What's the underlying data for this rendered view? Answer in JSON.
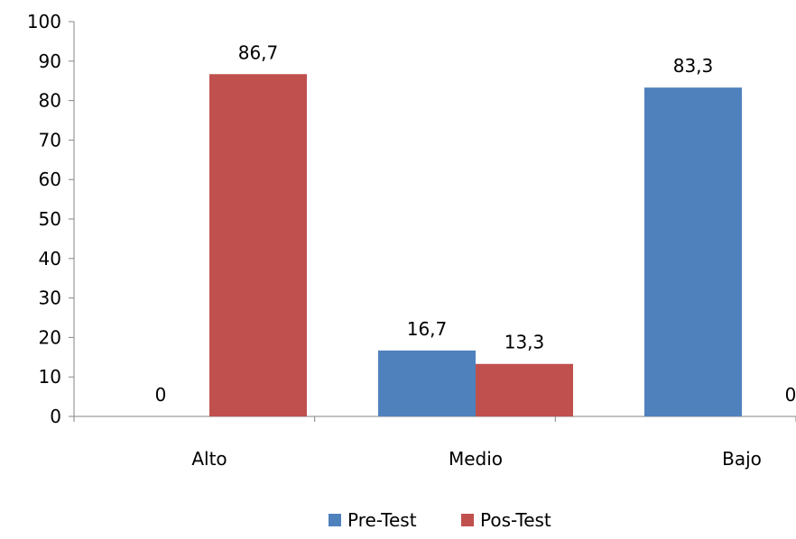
{
  "chart_data": {
    "type": "bar",
    "categories": [
      "Alto",
      "Medio",
      "Bajo"
    ],
    "series": [
      {
        "name": "Pre-Test",
        "color": "#4f81bd",
        "values": [
          0,
          16.7,
          83.3
        ],
        "labels": [
          "0",
          "16,7",
          "83,3"
        ]
      },
      {
        "name": "Pos-Test",
        "color": "#c0504d",
        "values": [
          86.7,
          13.3,
          0
        ],
        "labels": [
          "86,7",
          "13,3",
          "0"
        ]
      }
    ],
    "ylim": [
      0,
      100
    ],
    "yticks": [
      0,
      10,
      20,
      30,
      40,
      50,
      60,
      70,
      80,
      90,
      100
    ],
    "grid": false,
    "legend_position": "bottom",
    "title": "",
    "xlabel": "",
    "ylabel": ""
  }
}
